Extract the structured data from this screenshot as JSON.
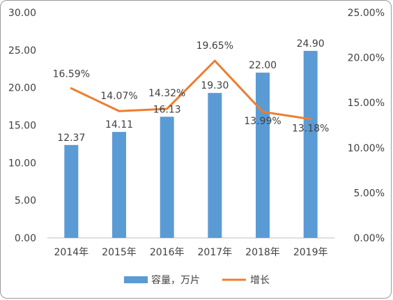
{
  "chart_data": {
    "type": "bar+line",
    "categories": [
      "2014年",
      "2015年",
      "2016年",
      "2017年",
      "2018年",
      "2019年"
    ],
    "series": [
      {
        "name": "容量，万片",
        "type": "bar",
        "axis": "left",
        "color": "#5b9bd5",
        "values": [
          12.37,
          14.11,
          16.13,
          19.3,
          22.0,
          24.9
        ],
        "labels": [
          "12.37",
          "14.11",
          "16.13",
          "19.30",
          "22.00",
          "24.90"
        ]
      },
      {
        "name": "增长",
        "type": "line",
        "axis": "right",
        "color": "#ed7d31",
        "values": [
          16.59,
          14.07,
          14.32,
          19.65,
          13.99,
          13.18
        ],
        "labels": [
          "16.59%",
          "14.07%",
          "14.32%",
          "19.65%",
          "13.99%",
          "13.18%"
        ]
      }
    ],
    "left_axis": {
      "ylim": [
        0,
        30
      ],
      "ticks": [
        "0.00",
        "5.00",
        "10.00",
        "15.00",
        "20.00",
        "25.00",
        "30.00"
      ]
    },
    "right_axis": {
      "ylim": [
        0,
        25
      ],
      "ticks": [
        "0.00%",
        "5.00%",
        "10.00%",
        "15.00%",
        "20.00%",
        "25.00%"
      ]
    },
    "grid": false,
    "legend_position": "bottom"
  }
}
